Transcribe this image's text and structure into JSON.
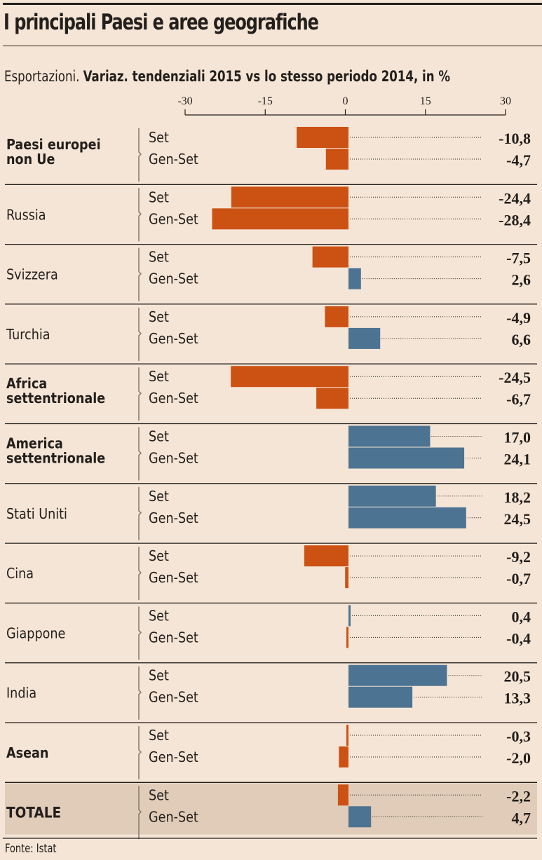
{
  "title": "I principali Paesi e aree geografiche",
  "subtitle_plain": "Esportazioni. ",
  "subtitle_bold": "Variaz. tendenziali 2015 vs lo stesso periodo 2014, in %",
  "source": "Fonte: Istat",
  "colors": {
    "negative": "#cc5214",
    "positive": "#4c7391",
    "background": "#f5e5d6",
    "total_background": "#e0ccb9"
  },
  "chart_data": {
    "type": "bar",
    "orientation": "horizontal",
    "title": "I principali Paesi e aree geografiche",
    "subtitle": "Esportazioni. Variaz. tendenziali 2015 vs lo stesso periodo 2014, in %",
    "xlim": [
      -30,
      30
    ],
    "xticks": [
      -30,
      -15,
      0,
      15,
      30
    ],
    "tick_labels": [
      "-30",
      "-15",
      "0",
      "15",
      "30"
    ],
    "series_names": [
      "Set",
      "Gen-Set"
    ],
    "groups": [
      {
        "name": "Paesi europei non Ue",
        "bold": true,
        "values": [
          -10.8,
          -4.7
        ],
        "labels": [
          "-10,8",
          "-4,7"
        ]
      },
      {
        "name": "Russia",
        "bold": false,
        "values": [
          -24.4,
          -28.4
        ],
        "labels": [
          "-24,4",
          "-28,4"
        ]
      },
      {
        "name": "Svizzera",
        "bold": false,
        "values": [
          -7.5,
          2.6
        ],
        "labels": [
          "-7,5",
          "2,6"
        ]
      },
      {
        "name": "Turchia",
        "bold": false,
        "values": [
          -4.9,
          6.6
        ],
        "labels": [
          "-4,9",
          "6,6"
        ]
      },
      {
        "name": "Africa settentrionale",
        "bold": true,
        "values": [
          -24.5,
          -6.7
        ],
        "labels": [
          "-24,5",
          "-6,7"
        ]
      },
      {
        "name": "America settentrionale",
        "bold": true,
        "values": [
          17.0,
          24.1
        ],
        "labels": [
          "17,0",
          "24,1"
        ]
      },
      {
        "name": "Stati Uniti",
        "bold": false,
        "values": [
          18.2,
          24.5
        ],
        "labels": [
          "18,2",
          "24,5"
        ]
      },
      {
        "name": "Cina",
        "bold": false,
        "values": [
          -9.2,
          -0.7
        ],
        "labels": [
          "-9,2",
          "-0,7"
        ]
      },
      {
        "name": "Giappone",
        "bold": false,
        "values": [
          0.4,
          -0.4
        ],
        "labels": [
          "0,4",
          "-0,4"
        ]
      },
      {
        "name": "India",
        "bold": false,
        "values": [
          20.5,
          13.3
        ],
        "labels": [
          "20,5",
          "13,3"
        ]
      },
      {
        "name": "Asean",
        "bold": true,
        "values": [
          -0.3,
          -2.0
        ],
        "labels": [
          "-0,3",
          "-2,0"
        ]
      },
      {
        "name": "TOTALE",
        "bold": true,
        "total": true,
        "values": [
          -2.2,
          4.7
        ],
        "labels": [
          "-2,2",
          "4,7"
        ]
      }
    ]
  }
}
